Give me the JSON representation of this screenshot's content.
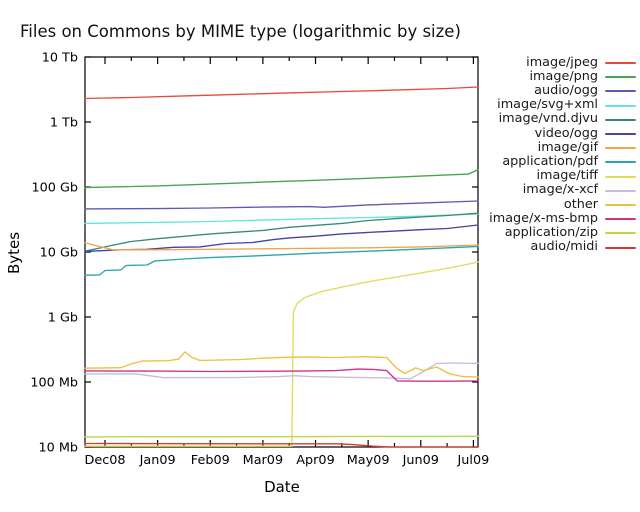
{
  "chart_data": {
    "type": "line",
    "title": "Files on Commons by MIME type (logarithmic by size)",
    "xlabel": "Date",
    "ylabel": "Bytes",
    "y_scale": "logarithmic",
    "value_unit": "Mb",
    "grid": false,
    "legend_position": "right-outside",
    "y_tick_labels": [
      "10 Tb",
      "1 Tb",
      "100 Gb",
      "10 Gb",
      "1 Gb",
      "100 Mb",
      "10 Mb"
    ],
    "y_tick_values_mb": [
      10000000,
      1000000,
      100000,
      10000,
      1000,
      100,
      10
    ],
    "x_tick_labels": [
      "Dec08",
      "Jan09",
      "Feb09",
      "Mar09",
      "Apr09",
      "May09",
      "Jun09",
      "Jul09"
    ],
    "x_range_months": [
      -0.38,
      7.09
    ],
    "y_range_mb": [
      10,
      10000000
    ],
    "series": [
      {
        "name": "image/jpeg",
        "color": "#e64a3c",
        "points": [
          [
            -0.38,
            2300000
          ],
          [
            0.5,
            2380000
          ],
          [
            1.5,
            2520000
          ],
          [
            2.5,
            2660000
          ],
          [
            3.5,
            2800000
          ],
          [
            4.5,
            2950000
          ],
          [
            5.5,
            3100000
          ],
          [
            6.5,
            3280000
          ],
          [
            7.09,
            3450000
          ]
        ]
      },
      {
        "name": "image/png",
        "color": "#4aa34e",
        "points": [
          [
            -0.38,
            98000
          ],
          [
            1,
            104000
          ],
          [
            2,
            111000
          ],
          [
            3,
            119000
          ],
          [
            4,
            127000
          ],
          [
            5,
            136000
          ],
          [
            6,
            147000
          ],
          [
            6.9,
            158000
          ],
          [
            7.09,
            185000
          ]
        ]
      },
      {
        "name": "audio/ogg",
        "color": "#5b5bb5",
        "points": [
          [
            -0.38,
            46000
          ],
          [
            1,
            46500
          ],
          [
            2,
            47500
          ],
          [
            3,
            49000
          ],
          [
            3.9,
            50000
          ],
          [
            4.15,
            48800
          ],
          [
            5,
            53000
          ],
          [
            6,
            56500
          ],
          [
            7.09,
            61000
          ]
        ]
      },
      {
        "name": "image/svg+xml",
        "color": "#62e6e0",
        "points": [
          [
            -0.38,
            27500
          ],
          [
            1,
            28500
          ],
          [
            2,
            29500
          ],
          [
            3,
            31000
          ],
          [
            4,
            32500
          ],
          [
            5,
            34000
          ],
          [
            6,
            35500
          ],
          [
            7.09,
            38500
          ]
        ]
      },
      {
        "name": "image/vnd.djvu",
        "color": "#3d8a74",
        "points": [
          [
            -0.38,
            10300
          ],
          [
            0.2,
            13000
          ],
          [
            0.5,
            14500
          ],
          [
            1,
            16000
          ],
          [
            2,
            19000
          ],
          [
            3,
            21500
          ],
          [
            3.5,
            24000
          ],
          [
            4.5,
            27500
          ],
          [
            5,
            30500
          ],
          [
            5.5,
            32500
          ],
          [
            6,
            34500
          ],
          [
            6.5,
            36500
          ],
          [
            7.09,
            39500
          ]
        ]
      },
      {
        "name": "video/ogg",
        "color": "#4343a8",
        "points": [
          [
            -0.38,
            10200
          ],
          [
            0.3,
            10800
          ],
          [
            0.8,
            11000
          ],
          [
            1.3,
            11800
          ],
          [
            1.8,
            12000
          ],
          [
            2.3,
            13500
          ],
          [
            2.8,
            14000
          ],
          [
            3.2,
            15500
          ],
          [
            3.5,
            16500
          ],
          [
            4,
            17500
          ],
          [
            4.5,
            19000
          ],
          [
            5,
            20000
          ],
          [
            5.5,
            21000
          ],
          [
            6,
            22000
          ],
          [
            6.5,
            23000
          ],
          [
            7.09,
            26000
          ]
        ]
      },
      {
        "name": "image/gif",
        "color": "#f2a54c",
        "points": [
          [
            -0.38,
            13800
          ],
          [
            0.15,
            10800
          ],
          [
            1,
            10800
          ],
          [
            2,
            11000
          ],
          [
            3,
            11200
          ],
          [
            4,
            11400
          ],
          [
            5,
            11600
          ],
          [
            6,
            12000
          ],
          [
            7.09,
            12800
          ]
        ]
      },
      {
        "name": "application/pdf",
        "color": "#2aa6ad",
        "points": [
          [
            -0.38,
            4400
          ],
          [
            -0.1,
            4450
          ],
          [
            0,
            5200
          ],
          [
            0.3,
            5300
          ],
          [
            0.4,
            6200
          ],
          [
            0.8,
            6300
          ],
          [
            0.95,
            7300
          ],
          [
            1.5,
            7800
          ],
          [
            2,
            8200
          ],
          [
            3,
            8800
          ],
          [
            4,
            9600
          ],
          [
            5,
            10300
          ],
          [
            6,
            11100
          ],
          [
            7.09,
            12200
          ]
        ]
      },
      {
        "name": "image/tiff",
        "color": "#e0dc5a",
        "points": [
          [
            -0.38,
            10.3
          ],
          [
            3.55,
            10.3
          ],
          [
            3.58,
            1200
          ],
          [
            3.65,
            1600
          ],
          [
            3.8,
            2000
          ],
          [
            4.1,
            2450
          ],
          [
            4.6,
            3000
          ],
          [
            5.1,
            3600
          ],
          [
            5.6,
            4200
          ],
          [
            6.1,
            4900
          ],
          [
            6.6,
            5800
          ],
          [
            7.09,
            7000
          ]
        ]
      },
      {
        "name": "image/x-xcf",
        "color": "#c3bede",
        "points": [
          [
            -0.38,
            133
          ],
          [
            0.6,
            133
          ],
          [
            1.1,
            117
          ],
          [
            2.5,
            117
          ],
          [
            3.3,
            121
          ],
          [
            3.6,
            125
          ],
          [
            3.9,
            121
          ],
          [
            4.6,
            118
          ],
          [
            5.3,
            116
          ],
          [
            5.8,
            112
          ],
          [
            6.05,
            145
          ],
          [
            6.3,
            192
          ],
          [
            6.6,
            196
          ],
          [
            7.09,
            193
          ]
        ]
      },
      {
        "name": "other",
        "color": "#eac23f",
        "points": [
          [
            -0.38,
            163
          ],
          [
            0.3,
            166
          ],
          [
            0.5,
            190
          ],
          [
            0.7,
            210
          ],
          [
            1.2,
            213
          ],
          [
            1.4,
            225
          ],
          [
            1.52,
            290
          ],
          [
            1.65,
            240
          ],
          [
            1.8,
            215
          ],
          [
            2.2,
            218
          ],
          [
            2.6,
            222
          ],
          [
            3,
            232
          ],
          [
            3.4,
            240
          ],
          [
            3.9,
            242
          ],
          [
            4.4,
            238
          ],
          [
            4.9,
            245
          ],
          [
            5.35,
            238
          ],
          [
            5.55,
            160
          ],
          [
            5.7,
            135
          ],
          [
            5.9,
            165
          ],
          [
            6.05,
            150
          ],
          [
            6.3,
            170
          ],
          [
            6.55,
            133
          ],
          [
            6.8,
            121
          ],
          [
            7.09,
            119
          ]
        ]
      },
      {
        "name": "image/x-ms-bmp",
        "color": "#d23484",
        "points": [
          [
            -0.38,
            148
          ],
          [
            1,
            147
          ],
          [
            2,
            145
          ],
          [
            3,
            146
          ],
          [
            3.9,
            148
          ],
          [
            4.4,
            150
          ],
          [
            4.8,
            158
          ],
          [
            5.1,
            156
          ],
          [
            5.35,
            150
          ],
          [
            5.55,
            104
          ],
          [
            6,
            103
          ],
          [
            6.5,
            103
          ],
          [
            7.09,
            104
          ]
        ]
      },
      {
        "name": "application/zip",
        "color": "#bcd944",
        "points": [
          [
            -0.38,
            14.3
          ],
          [
            3,
            14.4
          ],
          [
            7.09,
            14.6
          ]
        ]
      },
      {
        "name": "audio/midi",
        "color": "#d33a32",
        "points": [
          [
            -0.38,
            11.3
          ],
          [
            3,
            11.2
          ],
          [
            4.4,
            11.2
          ],
          [
            4.7,
            10.9
          ],
          [
            5.1,
            10.3
          ],
          [
            5.4,
            10.05
          ],
          [
            7.09,
            10.0
          ]
        ]
      }
    ]
  }
}
